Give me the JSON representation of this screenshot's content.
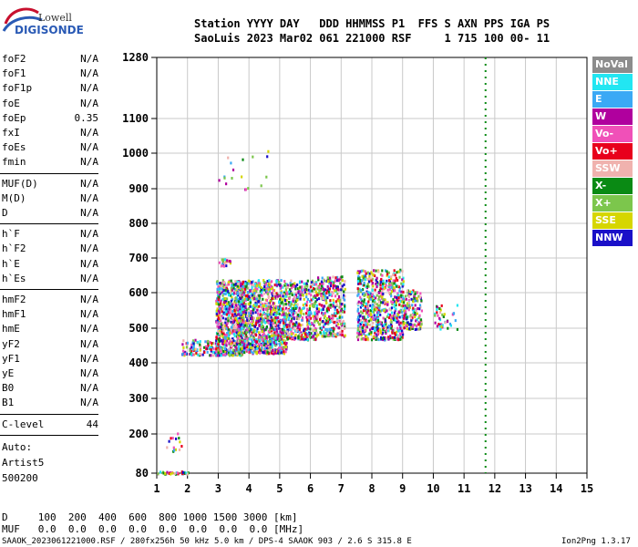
{
  "logo": {
    "line1": "Lowell",
    "line2": "DIGISONDE"
  },
  "header": {
    "row1": "Station YYYY DAY   DDD HHMMSS P1  FFS S AXN PPS IGA PS",
    "row2": "SaoLuis 2023 Mar02 061 221000 RSF     1 715 100 00- 11"
  },
  "params_group1": [
    {
      "name": "foF2",
      "value": "N/A"
    },
    {
      "name": "foF1",
      "value": "N/A"
    },
    {
      "name": "foF1p",
      "value": "N/A"
    },
    {
      "name": "foE",
      "value": "N/A"
    },
    {
      "name": "foEp",
      "value": "0.35"
    },
    {
      "name": "fxI",
      "value": "N/A"
    },
    {
      "name": "foEs",
      "value": "N/A"
    },
    {
      "name": "fmin",
      "value": "N/A"
    }
  ],
  "params_group2": [
    {
      "name": "MUF(D)",
      "value": "N/A"
    },
    {
      "name": "M(D)",
      "value": "N/A"
    },
    {
      "name": "D",
      "value": "N/A"
    }
  ],
  "params_group3": [
    {
      "name": "h`F",
      "value": "N/A"
    },
    {
      "name": "h`F2",
      "value": "N/A"
    },
    {
      "name": "h`E",
      "value": "N/A"
    },
    {
      "name": "h`Es",
      "value": "N/A"
    }
  ],
  "params_group4": [
    {
      "name": "hmF2",
      "value": "N/A"
    },
    {
      "name": "hmF1",
      "value": "N/A"
    },
    {
      "name": "hmE",
      "value": "N/A"
    },
    {
      "name": "yF2",
      "value": "N/A"
    },
    {
      "name": "yF1",
      "value": "N/A"
    },
    {
      "name": "yE",
      "value": "N/A"
    },
    {
      "name": "B0",
      "value": "N/A"
    },
    {
      "name": "B1",
      "value": "N/A"
    }
  ],
  "clevel": {
    "name": "C-level",
    "value": "44"
  },
  "auto": [
    "Auto:",
    "Artist5",
    "500200"
  ],
  "legend": [
    {
      "label": "NoVal",
      "color": "#8c8c8c"
    },
    {
      "label": "NNE",
      "color": "#22e6f2"
    },
    {
      "label": "E",
      "color": "#3aa9f5"
    },
    {
      "label": "W",
      "color": "#b0009e"
    },
    {
      "label": "Vo-",
      "color": "#f050b8"
    },
    {
      "label": "Vo+",
      "color": "#e8001c"
    },
    {
      "label": "SSW",
      "color": "#f0b2ae"
    },
    {
      "label": "X-",
      "color": "#0a8a14"
    },
    {
      "label": "X+",
      "color": "#7cc64c"
    },
    {
      "label": "SSE",
      "color": "#d6d600"
    },
    {
      "label": "NNW",
      "color": "#1a10c8"
    }
  ],
  "footer": {
    "d_row": "D     100  200  400  600  800 1000 1500 3000 [km]",
    "muf_row": "MUF   0.0  0.0  0.0  0.0  0.0  0.0  0.0  0.0 [MHz]",
    "info": "SAAOK_2023061221000.RSF / 280fx256h 50 kHz 5.0 km / DPS-4 SAAOK 903 / 2.6 S 315.8 E",
    "version": "Ion2Png 1.3.17"
  },
  "chart_data": {
    "type": "scatter",
    "title": "",
    "xlabel": "",
    "ylabel": "",
    "xlim": [
      1,
      15
    ],
    "ylim": [
      80,
      1280
    ],
    "x_ticks": [
      1,
      2,
      3,
      4,
      5,
      6,
      7,
      8,
      9,
      10,
      11,
      12,
      13,
      14,
      15
    ],
    "y_ticks": [
      80,
      200,
      300,
      400,
      500,
      600,
      700,
      800,
      900,
      1000,
      1100,
      1280
    ],
    "grid": true,
    "clusters": [
      {
        "x_range": [
          1.0,
          2.0
        ],
        "y_range": [
          80,
          88
        ],
        "density": 40
      },
      {
        "x_range": [
          1.3,
          1.9
        ],
        "y_range": [
          150,
          215
        ],
        "density": 14
      },
      {
        "x_range": [
          1.8,
          3.0
        ],
        "y_range": [
          425,
          470
        ],
        "density": 120
      },
      {
        "x_range": [
          2.9,
          3.8
        ],
        "y_range": [
          425,
          640
        ],
        "density": 700
      },
      {
        "x_range": [
          3.6,
          5.2
        ],
        "y_range": [
          430,
          640
        ],
        "density": 1100
      },
      {
        "x_range": [
          5.2,
          6.2
        ],
        "y_range": [
          470,
          640
        ],
        "density": 420
      },
      {
        "x_range": [
          6.2,
          7.1
        ],
        "y_range": [
          480,
          650
        ],
        "density": 320
      },
      {
        "x_range": [
          7.5,
          9.0
        ],
        "y_range": [
          470,
          670
        ],
        "density": 650
      },
      {
        "x_range": [
          9.0,
          9.6
        ],
        "y_range": [
          500,
          610
        ],
        "density": 160
      },
      {
        "x_range": [
          10.0,
          10.8
        ],
        "y_range": [
          500,
          570
        ],
        "density": 40
      },
      {
        "x_range": [
          3.0,
          3.4
        ],
        "y_range": [
          680,
          700
        ],
        "density": 20
      },
      {
        "x_range": [
          3.0,
          4.6
        ],
        "y_range": [
          900,
          1010
        ],
        "density": 18
      }
    ],
    "marker_line": {
      "x": 11.7,
      "y_range": [
        80,
        1280
      ],
      "color": "#0a8a14"
    }
  }
}
